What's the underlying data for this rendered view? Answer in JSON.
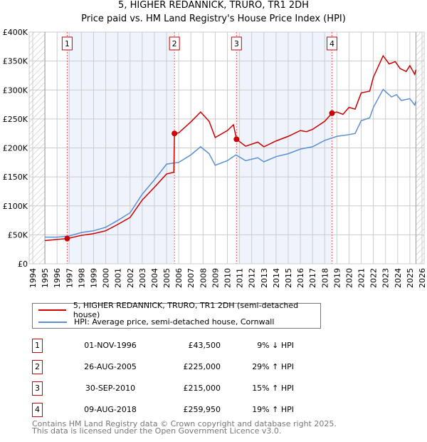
{
  "chart_data": {
    "type": "line",
    "title": "5, HIGHER REDANNICK, TRURO, TR1 2DH",
    "subtitle": "Price paid vs. HM Land Registry's House Price Index (HPI)",
    "xlim": [
      1994,
      2026
    ],
    "ylim": [
      0,
      400000
    ],
    "x_ticks": [
      "1994",
      "1995",
      "1996",
      "1997",
      "1998",
      "1999",
      "2000",
      "2001",
      "2002",
      "2003",
      "2004",
      "2005",
      "2006",
      "2007",
      "2008",
      "2009",
      "2010",
      "2011",
      "2012",
      "2013",
      "2014",
      "2015",
      "2016",
      "2017",
      "2018",
      "2019",
      "2020",
      "2021",
      "2022",
      "2023",
      "2024",
      "2025",
      "2026"
    ],
    "y_ticks": [
      {
        "v": 0,
        "label": "£0"
      },
      {
        "v": 50000,
        "label": "£50K"
      },
      {
        "v": 100000,
        "label": "£100K"
      },
      {
        "v": 150000,
        "label": "£150K"
      },
      {
        "v": 200000,
        "label": "£200K"
      },
      {
        "v": 250000,
        "label": "£250K"
      },
      {
        "v": 300000,
        "label": "£300K"
      },
      {
        "v": 350000,
        "label": "£350K"
      },
      {
        "v": 400000,
        "label": "£400K"
      }
    ],
    "grid": true,
    "series": [
      {
        "name": "5, HIGHER REDANNICK, TRURO, TR1 2DH (semi-detached house)",
        "color": "#cc0000",
        "x": [
          1995,
          1996,
          1996.83,
          1998,
          1999,
          2000,
          2001,
          2002,
          2003,
          2004,
          2005,
          2005.6,
          2005.65,
          2006,
          2007,
          2007.8,
          2008.5,
          2009,
          2010,
          2010.5,
          2010.75,
          2011.5,
          2012.5,
          2013,
          2014,
          2015,
          2016,
          2016.5,
          2017,
          2018,
          2018.6,
          2019,
          2019.5,
          2020,
          2020.5,
          2021,
          2021.7,
          2022,
          2022.8,
          2023.3,
          2023.8,
          2024.2,
          2024.7,
          2025,
          2025.4,
          2025.5
        ],
        "y": [
          40000,
          42000,
          43500,
          49000,
          52000,
          57000,
          68000,
          80000,
          110000,
          132000,
          155000,
          158000,
          225000,
          226000,
          245000,
          262000,
          246000,
          218000,
          230000,
          240000,
          215000,
          203000,
          210000,
          202000,
          212000,
          220000,
          230000,
          228000,
          232000,
          246000,
          259950,
          262000,
          258000,
          270000,
          267000,
          295000,
          298000,
          322000,
          359000,
          345000,
          349000,
          337000,
          332000,
          342000,
          327000,
          335000
        ]
      },
      {
        "name": "HPI: Average price, semi-detached house, Cornwall",
        "color": "#5b8fd4",
        "x": [
          1995,
          1996,
          1997,
          1998,
          1999,
          2000,
          2001,
          2002,
          2003,
          2004,
          2005,
          2005.6,
          2006,
          2007,
          2007.8,
          2008.5,
          2009,
          2010,
          2010.7,
          2011.5,
          2012.5,
          2013,
          2014,
          2015,
          2016,
          2017,
          2018,
          2019,
          2020,
          2020.5,
          2021,
          2021.7,
          2022,
          2022.8,
          2023.5,
          2023.9,
          2024.3,
          2025,
          2025.4,
          2025.5
        ],
        "y": [
          46000,
          46000,
          48000,
          54000,
          57000,
          63000,
          75000,
          88000,
          120000,
          145000,
          172000,
          174000,
          175000,
          188000,
          202000,
          190000,
          170000,
          178000,
          188000,
          178000,
          183000,
          176000,
          185000,
          190000,
          198000,
          202000,
          213000,
          220000,
          223000,
          225000,
          247000,
          252000,
          270000,
          301000,
          288000,
          292000,
          282000,
          285000,
          274000,
          281000
        ]
      }
    ],
    "sales": [
      {
        "label": "1",
        "x": 1996.83,
        "y": 43500,
        "date": "01-NOV-1996",
        "price": "£43,500",
        "hpi": "9% ↓ HPI"
      },
      {
        "label": "2",
        "x": 2005.65,
        "y": 225000,
        "date": "26-AUG-2005",
        "price": "£225,000",
        "hpi": "29% ↑ HPI"
      },
      {
        "label": "3",
        "x": 2010.75,
        "y": 215000,
        "date": "30-SEP-2010",
        "price": "£215,000",
        "hpi": "15% ↑ HPI"
      },
      {
        "label": "4",
        "x": 2018.6,
        "y": 259950,
        "date": "09-AUG-2018",
        "price": "£259,950",
        "hpi": "19% ↑ HPI"
      }
    ],
    "legend_position": "below"
  },
  "footer": {
    "line1": "Contains HM Land Registry data © Crown copyright and database right 2025.",
    "line2": "This data is licensed under the Open Government Licence v3.0."
  }
}
